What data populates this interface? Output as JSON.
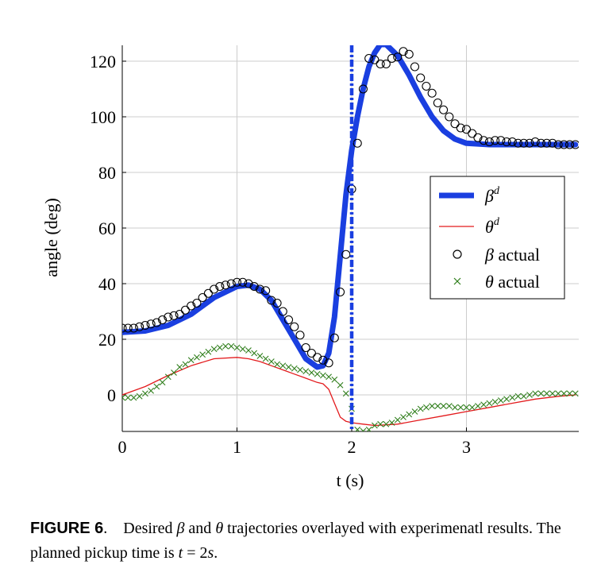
{
  "chart_data": {
    "type": "line",
    "xlabel": "t (s)",
    "ylabel": "angle (deg)",
    "xlim": [
      0,
      3.95
    ],
    "ylim": [
      -13,
      126
    ],
    "xticks": [
      0,
      1,
      2,
      3
    ],
    "yticks": [
      0,
      20,
      40,
      60,
      80,
      100,
      120
    ],
    "grid": true,
    "legend_position": "right",
    "vertical_line": {
      "x": 2.0,
      "style": "dash-dot",
      "color": "#1a3fe0"
    },
    "series": [
      {
        "name": "β^d",
        "label_base": "β",
        "label_sup": "d",
        "kind": "line",
        "color": "#1a3fe0",
        "width": 7,
        "x": [
          0,
          0.2,
          0.4,
          0.6,
          0.8,
          1.0,
          1.1,
          1.2,
          1.3,
          1.4,
          1.5,
          1.6,
          1.7,
          1.75,
          1.8,
          1.85,
          1.9,
          1.95,
          2.0,
          2.05,
          2.1,
          2.15,
          2.2,
          2.25,
          2.3,
          2.4,
          2.5,
          2.6,
          2.7,
          2.8,
          2.9,
          3.0,
          3.2,
          3.4,
          3.6,
          3.8,
          3.95
        ],
        "y": [
          22.5,
          23,
          25,
          29,
          35,
          39,
          39.5,
          38,
          34,
          27,
          20,
          13,
          10,
          10.5,
          15,
          28,
          50,
          72,
          88,
          100,
          110,
          118,
          123,
          126,
          126,
          122,
          115,
          107,
          100,
          95,
          92,
          90.5,
          90,
          90,
          90,
          90,
          90
        ]
      },
      {
        "name": "θ^d",
        "label_base": "θ",
        "label_sup": "d",
        "kind": "line",
        "color": "#e31a1c",
        "width": 1.3,
        "x": [
          0,
          0.2,
          0.4,
          0.6,
          0.8,
          1.0,
          1.1,
          1.2,
          1.3,
          1.4,
          1.5,
          1.6,
          1.7,
          1.75,
          1.8,
          1.85,
          1.9,
          1.95,
          2.0,
          2.1,
          2.2,
          2.4,
          2.6,
          2.8,
          3.0,
          3.2,
          3.4,
          3.6,
          3.8,
          3.95
        ],
        "y": [
          0,
          3,
          7,
          10.5,
          13,
          13.5,
          13,
          12,
          10.5,
          9,
          7.5,
          6,
          4.5,
          4,
          2,
          -3,
          -8,
          -9.5,
          -10,
          -10.5,
          -11,
          -10.5,
          -9,
          -7.5,
          -6,
          -4.5,
          -3,
          -1.5,
          -0.5,
          0
        ]
      },
      {
        "name": "β actual",
        "label_base": "β",
        "label_rest": " actual",
        "kind": "circle",
        "color": "#000000",
        "x": [
          0,
          0.05,
          0.1,
          0.15,
          0.2,
          0.25,
          0.3,
          0.35,
          0.4,
          0.45,
          0.5,
          0.55,
          0.6,
          0.65,
          0.7,
          0.75,
          0.8,
          0.85,
          0.9,
          0.95,
          1.0,
          1.05,
          1.1,
          1.15,
          1.2,
          1.25,
          1.3,
          1.35,
          1.4,
          1.45,
          1.5,
          1.55,
          1.6,
          1.65,
          1.7,
          1.75,
          1.8,
          1.85,
          1.9,
          1.95,
          2.0,
          2.05,
          2.1,
          2.15,
          2.2,
          2.25,
          2.3,
          2.35,
          2.4,
          2.45,
          2.5,
          2.55,
          2.6,
          2.65,
          2.7,
          2.75,
          2.8,
          2.85,
          2.9,
          2.95,
          3.0,
          3.05,
          3.1,
          3.15,
          3.2,
          3.25,
          3.3,
          3.35,
          3.4,
          3.45,
          3.5,
          3.55,
          3.6,
          3.65,
          3.7,
          3.75,
          3.8,
          3.85,
          3.9,
          3.95
        ],
        "y": [
          24,
          24,
          24,
          24.5,
          25,
          25.5,
          26,
          27,
          28,
          28.5,
          29,
          30.5,
          32,
          33,
          35,
          36.5,
          38,
          39,
          39.5,
          40,
          40.5,
          40.5,
          40,
          39,
          38,
          37.5,
          34,
          33,
          30,
          27,
          24.5,
          21.5,
          17,
          15,
          13.5,
          12.5,
          11.5,
          20.5,
          37,
          50.5,
          74,
          90.5,
          110,
          121,
          120.5,
          119,
          119,
          121,
          121.5,
          123.5,
          122.5,
          118,
          114,
          111,
          108.5,
          105,
          102.5,
          100,
          97.5,
          96,
          95.5,
          94,
          92.5,
          91.5,
          91,
          91.5,
          91.5,
          91,
          91,
          90.5,
          90.5,
          90.5,
          91,
          90.5,
          90.5,
          90.5,
          90,
          90,
          90,
          90
        ]
      },
      {
        "name": "θ actual",
        "label_base": "θ",
        "label_rest": " actual",
        "kind": "cross",
        "color": "#2e7d1a",
        "x": [
          0,
          0.05,
          0.1,
          0.15,
          0.2,
          0.25,
          0.3,
          0.35,
          0.4,
          0.45,
          0.5,
          0.55,
          0.6,
          0.65,
          0.7,
          0.75,
          0.8,
          0.85,
          0.9,
          0.95,
          1.0,
          1.05,
          1.1,
          1.15,
          1.2,
          1.25,
          1.3,
          1.35,
          1.4,
          1.45,
          1.5,
          1.55,
          1.6,
          1.65,
          1.7,
          1.75,
          1.8,
          1.85,
          1.9,
          1.95,
          2.0,
          2.05,
          2.1,
          2.15,
          2.2,
          2.25,
          2.3,
          2.35,
          2.4,
          2.45,
          2.5,
          2.55,
          2.6,
          2.65,
          2.7,
          2.75,
          2.8,
          2.85,
          2.9,
          2.95,
          3.0,
          3.05,
          3.1,
          3.15,
          3.2,
          3.25,
          3.3,
          3.35,
          3.4,
          3.45,
          3.5,
          3.55,
          3.6,
          3.65,
          3.7,
          3.75,
          3.8,
          3.85,
          3.9,
          3.95
        ],
        "y": [
          -1,
          -1,
          -1,
          -0.5,
          0.5,
          1.5,
          3,
          4.5,
          6.5,
          8,
          10,
          11,
          12.5,
          13.5,
          14.5,
          15.5,
          16.5,
          17,
          17.5,
          17.5,
          17,
          16.5,
          16,
          15,
          14,
          13,
          12,
          11,
          10.5,
          10,
          9.5,
          9,
          8.5,
          8,
          7.5,
          7,
          6.5,
          5.5,
          3.5,
          0.5,
          -5,
          -12.5,
          -13,
          -12.5,
          -11,
          -10.5,
          -10.5,
          -10,
          -9,
          -8,
          -7,
          -6,
          -5,
          -4.5,
          -4,
          -4,
          -4,
          -4,
          -4.5,
          -4.5,
          -4.5,
          -4.5,
          -4,
          -3.5,
          -3,
          -2.5,
          -2,
          -1.5,
          -1,
          -0.5,
          -0.5,
          0,
          0.5,
          0.5,
          0.5,
          0.5,
          0.5,
          0.5,
          0.5,
          0.5
        ]
      }
    ]
  },
  "caption": {
    "fig_label": "FIGURE 6",
    "dot": ".",
    "t1": "Desired ",
    "beta": "β",
    "t2": " and ",
    "theta": "θ",
    "t3": " trajectories overlayed with experimenatl results. The planned pickup time is ",
    "t_var": "t",
    "eq": " = 2",
    "s_var": "s",
    "end": "."
  }
}
